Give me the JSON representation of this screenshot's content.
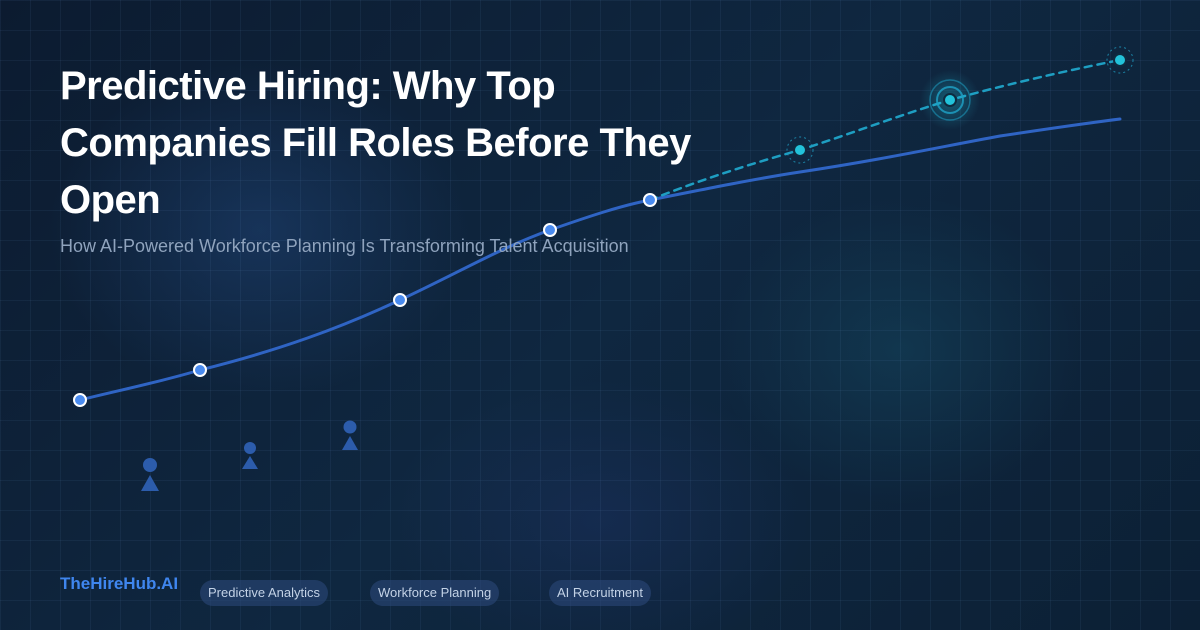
{
  "header": {
    "title": "Predictive Hiring: Why Top Companies Fill Roles Before They Open",
    "subtitle": "How AI-Powered Workforce Planning Is Transforming Talent Acquisition"
  },
  "footer": {
    "brand": "TheHireHub.AI",
    "tags": [
      "Predictive Analytics",
      "Workforce Planning",
      "AI Recruitment"
    ]
  },
  "colors": {
    "background": "#0d1e33",
    "actual_line": "#2f64c4",
    "actual_point": "#4a8bef",
    "forecast_line": "#1e9ec2",
    "forecast_point": "#22c2da",
    "brand": "#3f86ee",
    "person_icons": "#2c5cab"
  },
  "decor": {
    "line_style": "solid curve with markers, continued by dashed forecast curve",
    "highlighted_marker": "forecast point with concentric rings"
  },
  "icons": [
    "person-icon",
    "person-icon",
    "person-icon"
  ]
}
